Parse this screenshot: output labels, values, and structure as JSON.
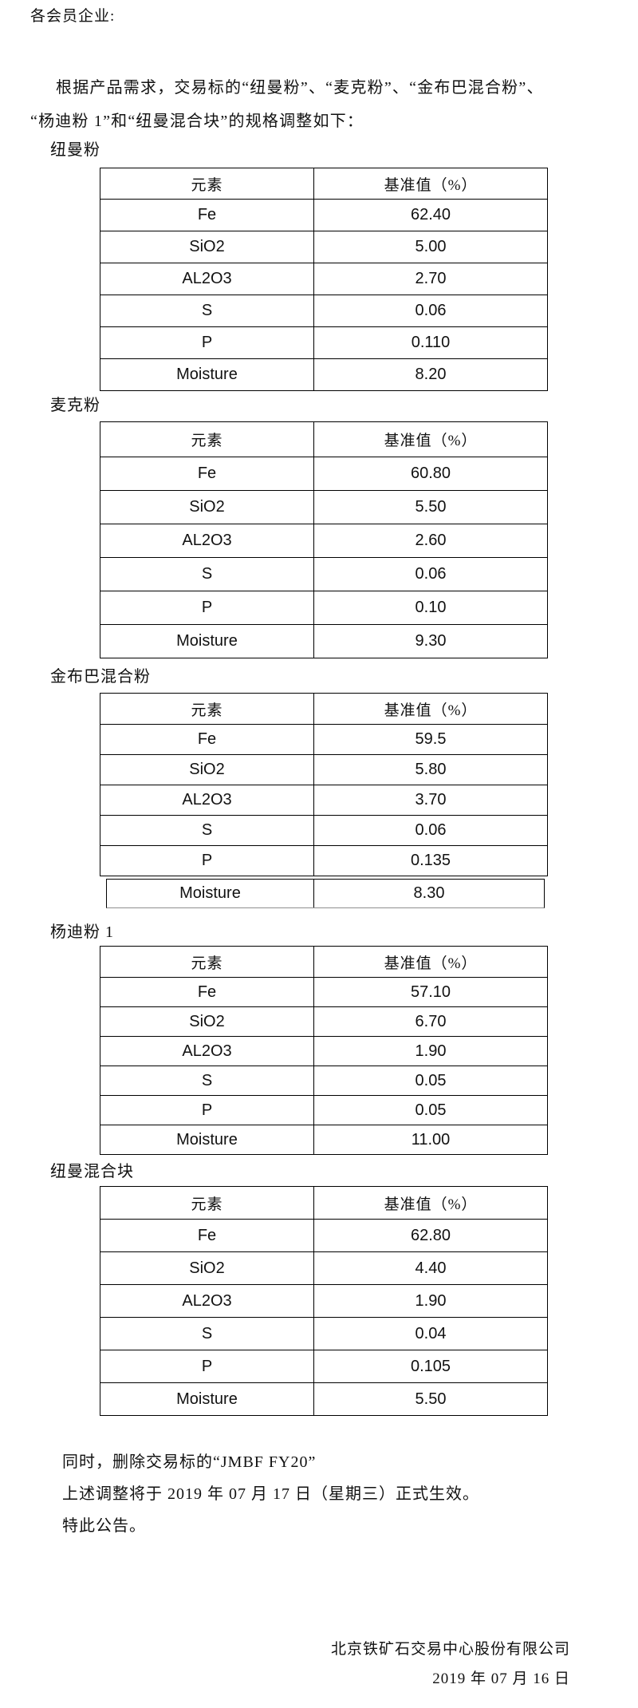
{
  "document": {
    "salutation": "各会员企业:",
    "intro_line1": "根据产品需求，交易标的“纽曼粉”、“麦克粉”、“金布巴混合粉”、",
    "intro_line2": "“杨迪粉 1”和“纽曼混合块”的规格调整如下："
  },
  "table_headers": {
    "element": "元素",
    "base_value": "基准值（%）"
  },
  "products": [
    {
      "name": "纽曼粉",
      "rows": [
        {
          "element": "Fe",
          "value": "62.40"
        },
        {
          "element": "SiO2",
          "value": "5.00"
        },
        {
          "element": "AL2O3",
          "value": "2.70"
        },
        {
          "element": "S",
          "value": "0.06"
        },
        {
          "element": "P",
          "value": "0.110"
        },
        {
          "element": "Moisture",
          "value": "8.20"
        }
      ]
    },
    {
      "name": "麦克粉",
      "rows": [
        {
          "element": "Fe",
          "value": "60.80"
        },
        {
          "element": "SiO2",
          "value": "5.50"
        },
        {
          "element": "AL2O3",
          "value": "2.60"
        },
        {
          "element": "S",
          "value": "0.06"
        },
        {
          "element": "P",
          "value": "0.10"
        },
        {
          "element": "Moisture",
          "value": "9.30"
        }
      ]
    },
    {
      "name": "金布巴混合粉",
      "moisture_detached": true,
      "rows": [
        {
          "element": "Fe",
          "value": "59.5"
        },
        {
          "element": "SiO2",
          "value": "5.80"
        },
        {
          "element": "AL2O3",
          "value": "3.70"
        },
        {
          "element": "S",
          "value": "0.06"
        },
        {
          "element": "P",
          "value": "0.135"
        },
        {
          "element": "Moisture",
          "value": "8.30"
        }
      ]
    },
    {
      "name": "杨迪粉 1",
      "rows": [
        {
          "element": "Fe",
          "value": "57.10"
        },
        {
          "element": "SiO2",
          "value": "6.70"
        },
        {
          "element": "AL2O3",
          "value": "1.90"
        },
        {
          "element": "S",
          "value": "0.05"
        },
        {
          "element": "P",
          "value": "0.05"
        },
        {
          "element": "Moisture",
          "value": "11.00"
        }
      ]
    },
    {
      "name": "纽曼混合块",
      "rows": [
        {
          "element": "Fe",
          "value": "62.80"
        },
        {
          "element": "SiO2",
          "value": "4.40"
        },
        {
          "element": "AL2O3",
          "value": "1.90"
        },
        {
          "element": "S",
          "value": "0.04"
        },
        {
          "element": "P",
          "value": "0.105"
        },
        {
          "element": "Moisture",
          "value": "5.50"
        }
      ]
    }
  ],
  "footer": {
    "line1": "同时，删除交易标的“JMBF FY20”",
    "line2": "上述调整将于 2019 年 07 月 17 日（星期三）正式生效。",
    "line3": "特此公告。",
    "company": "北京铁矿石交易中心股份有限公司",
    "date": "2019 年 07 月 16 日"
  }
}
